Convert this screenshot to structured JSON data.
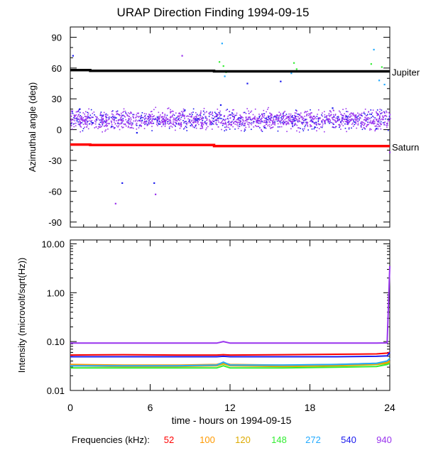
{
  "title": "URAP Direction Finding  1994-09-15",
  "xlabel": "time - hours on 1994-09-15",
  "legend_label": "Frequencies (kHz):",
  "chart_data": [
    {
      "type": "scatter",
      "panel": "top",
      "ylabel": "Azimuthal angle (deg)",
      "xlim": [
        0,
        24
      ],
      "ylim": [
        -95,
        100
      ],
      "yticks": [
        90,
        60,
        30,
        0,
        -30,
        -60,
        -90
      ],
      "lines": [
        {
          "label": "Jupiter",
          "color": "#000000",
          "x": [
            0,
            1.5,
            1.5,
            10.8,
            10.8,
            24
          ],
          "y": [
            58,
            58,
            57.3,
            57.3,
            56.8,
            56.8
          ]
        },
        {
          "label": "Saturn",
          "color": "#ff0000",
          "x": [
            0,
            1.5,
            1.5,
            10.8,
            10.8,
            24
          ],
          "y": [
            -14.5,
            -14.5,
            -15,
            -15,
            -16,
            -16
          ]
        }
      ],
      "points": [
        {
          "freq": "940",
          "x": 0.3,
          "y": 14
        },
        {
          "freq": "940",
          "x": 1.1,
          "y": 8
        },
        {
          "freq": "940",
          "x": 2.0,
          "y": 12
        },
        {
          "freq": "940",
          "x": 2.9,
          "y": 6
        },
        {
          "freq": "940",
          "x": 3.6,
          "y": 15
        },
        {
          "freq": "940",
          "x": 4.4,
          "y": 10
        },
        {
          "freq": "940",
          "x": 5.3,
          "y": 4
        },
        {
          "freq": "940",
          "x": 6.0,
          "y": 13
        },
        {
          "freq": "940",
          "x": 7.1,
          "y": 9
        },
        {
          "freq": "940",
          "x": 8.2,
          "y": 16
        },
        {
          "freq": "940",
          "x": 9.0,
          "y": 7
        },
        {
          "freq": "940",
          "x": 9.9,
          "y": 11
        },
        {
          "freq": "940",
          "x": 11.0,
          "y": 14
        },
        {
          "freq": "940",
          "x": 12.1,
          "y": 5
        },
        {
          "freq": "940",
          "x": 13.2,
          "y": 12
        },
        {
          "freq": "940",
          "x": 14.0,
          "y": 9
        },
        {
          "freq": "940",
          "x": 15.1,
          "y": 15
        },
        {
          "freq": "940",
          "x": 16.0,
          "y": 6
        },
        {
          "freq": "940",
          "x": 17.2,
          "y": 11
        },
        {
          "freq": "940",
          "x": 18.3,
          "y": 13
        },
        {
          "freq": "940",
          "x": 19.1,
          "y": 8
        },
        {
          "freq": "940",
          "x": 20.2,
          "y": 10
        },
        {
          "freq": "940",
          "x": 21.4,
          "y": 14
        },
        {
          "freq": "940",
          "x": 22.5,
          "y": 7
        },
        {
          "freq": "940",
          "x": 23.5,
          "y": 12
        },
        {
          "freq": "540",
          "x": 0.7,
          "y": 20
        },
        {
          "freq": "540",
          "x": 3.1,
          "y": 3
        },
        {
          "freq": "540",
          "x": 5.0,
          "y": -3
        },
        {
          "freq": "540",
          "x": 8.6,
          "y": 19
        },
        {
          "freq": "540",
          "x": 11.3,
          "y": 24
        },
        {
          "freq": "540",
          "x": 14.6,
          "y": 2
        },
        {
          "freq": "540",
          "x": 19.7,
          "y": 21
        },
        {
          "freq": "540",
          "x": 23.0,
          "y": 1
        },
        {
          "freq": "540",
          "x": 0.2,
          "y": 72
        },
        {
          "freq": "540",
          "x": 3.9,
          "y": -52
        },
        {
          "freq": "540",
          "x": 6.3,
          "y": -52
        },
        {
          "freq": "540",
          "x": 13.3,
          "y": 45
        },
        {
          "freq": "540",
          "x": 15.8,
          "y": 47
        },
        {
          "freq": "940",
          "x": 3.4,
          "y": -72
        },
        {
          "freq": "940",
          "x": 6.4,
          "y": -63
        },
        {
          "freq": "940",
          "x": 8.4,
          "y": 72
        },
        {
          "freq": "940",
          "x": 24.0,
          "y": -22
        },
        {
          "freq": "148",
          "x": 11.2,
          "y": 66
        },
        {
          "freq": "148",
          "x": 11.5,
          "y": 62
        },
        {
          "freq": "148",
          "x": 11.7,
          "y": 56
        },
        {
          "freq": "148",
          "x": 16.8,
          "y": 65
        },
        {
          "freq": "148",
          "x": 17.0,
          "y": 59
        },
        {
          "freq": "148",
          "x": 22.6,
          "y": 64
        },
        {
          "freq": "148",
          "x": 23.0,
          "y": 57
        },
        {
          "freq": "148",
          "x": 23.4,
          "y": 61
        },
        {
          "freq": "272",
          "x": 11.4,
          "y": 84
        },
        {
          "freq": "272",
          "x": 11.6,
          "y": 52
        },
        {
          "freq": "272",
          "x": 16.6,
          "y": 55
        },
        {
          "freq": "272",
          "x": 22.8,
          "y": 78
        },
        {
          "freq": "272",
          "x": 23.2,
          "y": 48
        },
        {
          "freq": "272",
          "x": 23.6,
          "y": 44
        }
      ]
    },
    {
      "type": "line",
      "panel": "bottom",
      "ylabel": "Intensity (microvolt/sqrt(Hz))",
      "yscale": "log",
      "xlim": [
        0,
        24
      ],
      "ylim": [
        0.01,
        12
      ],
      "yticks": [
        10,
        1,
        0.1,
        0.01
      ],
      "ytick_labels": [
        "10.00",
        "1.00",
        "0.10",
        "0.01"
      ],
      "xticks": [
        0,
        6,
        12,
        18,
        24
      ],
      "x": [
        0,
        4,
        8,
        11,
        11.5,
        12,
        16,
        20,
        23,
        23.8,
        24
      ],
      "series": [
        {
          "freq": "52",
          "color": "#ff0000",
          "values": [
            0.053,
            0.054,
            0.053,
            0.053,
            0.054,
            0.053,
            0.054,
            0.055,
            0.056,
            0.058,
            0.06
          ]
        },
        {
          "freq": "100",
          "color": "#ff9900",
          "values": [
            0.034,
            0.033,
            0.033,
            0.034,
            0.037,
            0.034,
            0.033,
            0.034,
            0.036,
            0.038,
            0.04
          ]
        },
        {
          "freq": "120",
          "color": "#ddaa00",
          "values": [
            0.032,
            0.031,
            0.031,
            0.032,
            0.035,
            0.032,
            0.031,
            0.032,
            0.034,
            0.036,
            0.038
          ]
        },
        {
          "freq": "148",
          "color": "#33ee33",
          "values": [
            0.029,
            0.029,
            0.029,
            0.029,
            0.032,
            0.029,
            0.029,
            0.03,
            0.031,
            0.034,
            0.036
          ]
        },
        {
          "freq": "272",
          "color": "#22aaff",
          "values": [
            0.032,
            0.032,
            0.032,
            0.033,
            0.038,
            0.033,
            0.033,
            0.034,
            0.036,
            0.04,
            0.045
          ]
        },
        {
          "freq": "540",
          "color": "#1a1aee",
          "values": [
            0.049,
            0.049,
            0.049,
            0.049,
            0.05,
            0.049,
            0.049,
            0.049,
            0.05,
            0.051,
            0.06
          ]
        },
        {
          "freq": "940",
          "color": "#9933ee",
          "values": [
            0.093,
            0.093,
            0.093,
            0.093,
            0.1,
            0.093,
            0.093,
            0.093,
            0.093,
            0.094,
            3.5
          ]
        }
      ]
    }
  ],
  "frequencies": [
    {
      "label": "52",
      "color": "#ff0000"
    },
    {
      "label": "100",
      "color": "#ff9900"
    },
    {
      "label": "120",
      "color": "#ddaa00"
    },
    {
      "label": "148",
      "color": "#33ee33"
    },
    {
      "label": "272",
      "color": "#22aaff"
    },
    {
      "label": "540",
      "color": "#1a1aee"
    },
    {
      "label": "940",
      "color": "#9933ee"
    }
  ]
}
